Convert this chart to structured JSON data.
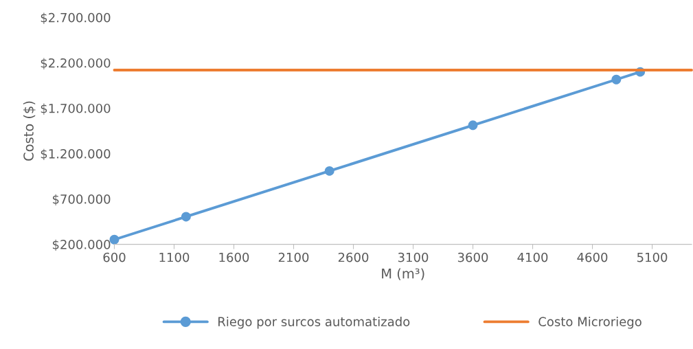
{
  "chart_data": {
    "type": "line",
    "xlabel": "M (m³)",
    "ylabel": "Costo ($)",
    "series": [
      {
        "name": "Riego por surcos automatizado",
        "color": "#5b9bd5",
        "marker": "circle",
        "x": [
          600,
          1200,
          2400,
          3600,
          4800,
          5000
        ],
        "values": [
          252000,
          504000,
          1008000,
          1512000,
          2016000,
          2100000
        ]
      },
      {
        "name": "Costo Microriego",
        "color": "#ed7d31",
        "marker": "none",
        "x": [
          600,
          5430
        ],
        "values": [
          2120000,
          2120000
        ]
      }
    ],
    "xlim": [
      600,
      5430
    ],
    "xticks": [
      600,
      1100,
      1600,
      2100,
      2600,
      3100,
      3600,
      4100,
      4600,
      5100
    ],
    "ylim": [
      200000,
      2700000
    ],
    "yticks": [
      {
        "value": 200000,
        "label": "$200.000"
      },
      {
        "value": 700000,
        "label": "$700.000"
      },
      {
        "value": 1200000,
        "label": "$1.200.000"
      },
      {
        "value": 1700000,
        "label": "$1.700.000"
      },
      {
        "value": 2200000,
        "label": "$2.200.000"
      },
      {
        "value": 2700000,
        "label": "$2.700.000"
      }
    ],
    "grid": false,
    "legend": "bottom"
  }
}
